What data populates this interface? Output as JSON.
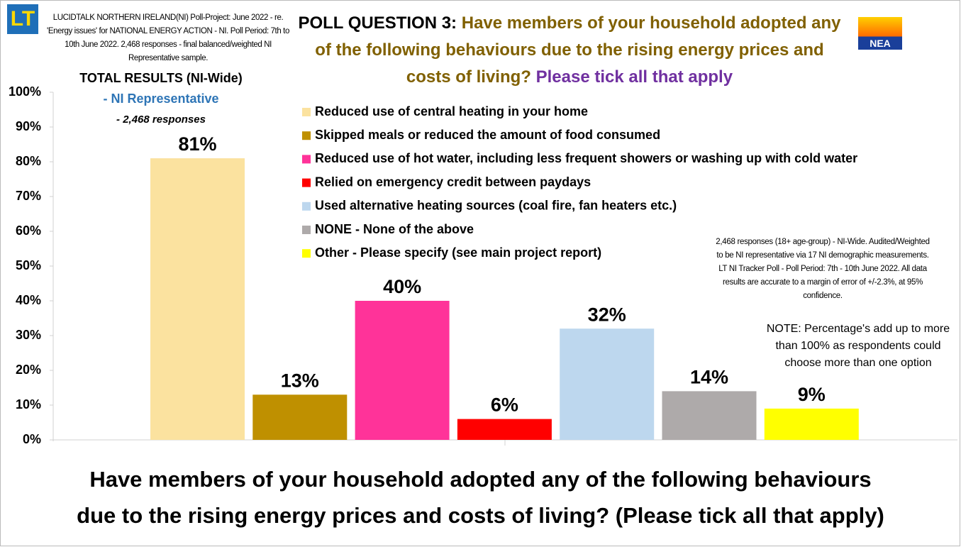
{
  "header": {
    "logo_left": "LT",
    "logo_right": "NEA",
    "description": "LUCIDTALK NORTHERN IRELAND(NI) Poll-Project: June 2022 - re. 'Energy issues' for NATIONAL ENERGY ACTION - NI. Poll Period: 7th to 10th June 2022. 2,468 responses - final balanced/weighted NI Representative sample.",
    "total_results": "TOTAL RESULTS (NI-Wide)",
    "representative": "- NI Representative",
    "responses": "- 2,468 responses"
  },
  "chart_data": {
    "type": "bar",
    "title": {
      "prefix": "POLL QUESTION 3:",
      "question": "Have members of your household adopted any of the following behaviours due to the rising energy prices and costs of living?",
      "instruction": "Please tick all that apply"
    },
    "categories": [
      "Reduced use of central heating in your home",
      "Skipped meals or reduced the amount of food consumed",
      "Reduced use of hot water, including less frequent showers or washing up with cold water",
      "Relied on emergency credit between paydays",
      "Used alternative heating sources (coal fire, fan heaters etc.)",
      "NONE - None of the above",
      "Other - Please specify (see main project report)"
    ],
    "values": [
      81,
      13,
      40,
      6,
      32,
      14,
      9
    ],
    "value_labels": [
      "81%",
      "13%",
      "40%",
      "6%",
      "32%",
      "14%",
      "9%"
    ],
    "colors": [
      "#fbe29f",
      "#bf9000",
      "#ff3399",
      "#ff0000",
      "#bdd7ee",
      "#aeaaaa",
      "#ffff00"
    ],
    "ylim": [
      0,
      100
    ],
    "yticks": [
      {
        "value": 0,
        "label": "0%"
      },
      {
        "value": 10,
        "label": "10%"
      },
      {
        "value": 20,
        "label": "20%"
      },
      {
        "value": 30,
        "label": "30%"
      },
      {
        "value": 40,
        "label": "40%"
      },
      {
        "value": 50,
        "label": "50%"
      },
      {
        "value": 60,
        "label": "60%"
      },
      {
        "value": 70,
        "label": "70%"
      },
      {
        "value": 80,
        "label": "80%"
      },
      {
        "value": 90,
        "label": "90%"
      },
      {
        "value": 100,
        "label": "100%"
      }
    ],
    "methodology": "2,468 responses (18+ age-group) - NI-Wide. Audited/Weighted to be NI representative via 17 NI demographic measurements. LT NI Tracker Poll - Poll Period: 7th - 10th June 2022. All data results are accurate to a margin of error of +/-2.3%, at 95% confidence.",
    "note": "NOTE: Percentage's add up to more than 100% as respondents could choose more than one option",
    "caption": [
      "Have members of your household adopted any of the following behaviours",
      "due to the rising energy prices and costs of living? (Please tick all that apply)"
    ]
  }
}
